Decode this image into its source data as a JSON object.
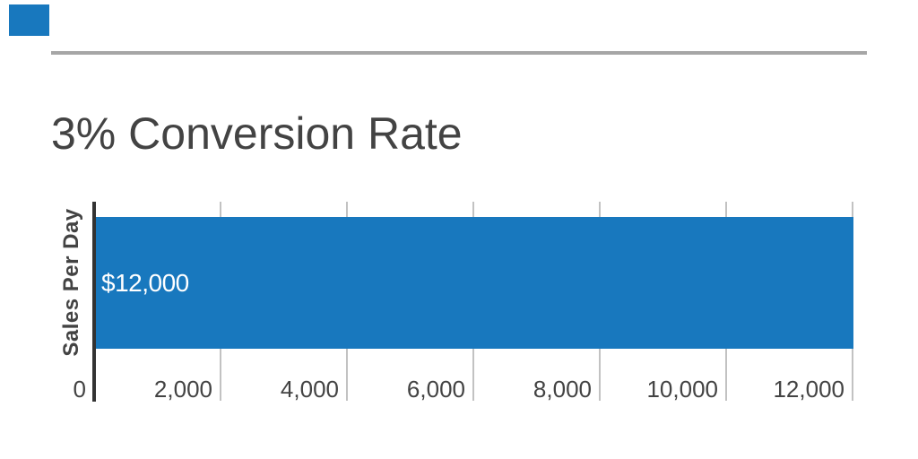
{
  "slide": {
    "background": "#ffffff",
    "accent_square_color": "#1878be",
    "divider_color": "#a6a6a6"
  },
  "chart_data": {
    "type": "bar",
    "orientation": "horizontal",
    "title": "3% Conversion Rate",
    "categories": [
      "Sales Per Day"
    ],
    "values": [
      12000
    ],
    "value_labels": [
      "$12,000"
    ],
    "ylabel": "Sales Per Day",
    "xlabel": "",
    "xlim": [
      0,
      12000
    ],
    "x_tick_values": [
      0,
      2000,
      4000,
      6000,
      8000,
      10000,
      12000
    ],
    "x_tick_labels": [
      "0",
      "2,000",
      "4,000",
      "6,000",
      "8,000",
      "10,000",
      "12,000"
    ],
    "grid": true,
    "legend": "none",
    "colors": {
      "bar": "#1878be",
      "bar_label_text": "#ffffff",
      "axis_line": "#333333",
      "gridline": "#c2c2c2",
      "text": "#434343"
    }
  }
}
